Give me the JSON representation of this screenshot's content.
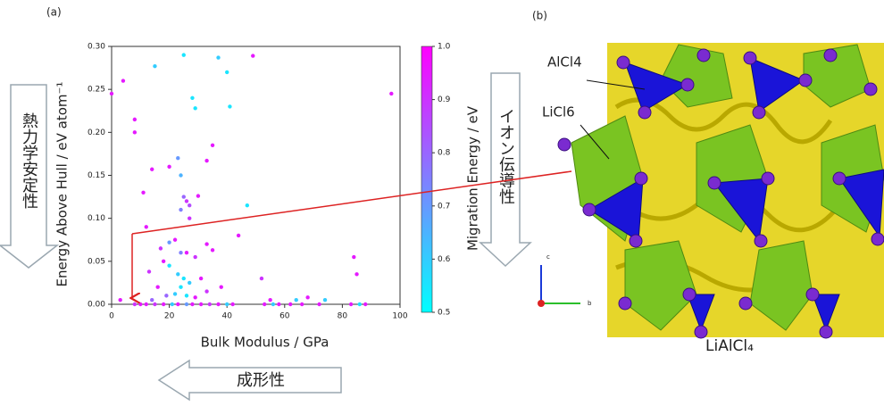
{
  "chart_data": {
    "type": "scatter",
    "panel_label": "(a)",
    "x_label": "Bulk Modulus / GPa",
    "y_label": "Energy Above Hull / eV atom⁻¹",
    "colorbar_label": "Migration Energy / eV",
    "colormap": "cool",
    "xlim": [
      0,
      100
    ],
    "xticks": [
      0,
      20,
      40,
      60,
      80,
      100
    ],
    "ylim": [
      0,
      0.3
    ],
    "yticks": [
      {
        "value": 0,
        "label": "0.00"
      },
      {
        "value": 0.05,
        "label": "0.05"
      },
      {
        "value": 0.1,
        "label": "0.10"
      },
      {
        "value": 0.15,
        "label": "0.15"
      },
      {
        "value": 0.2,
        "label": "0.20"
      },
      {
        "value": 0.25,
        "label": "0.25"
      },
      {
        "value": 0.3,
        "label": "0.30"
      }
    ],
    "clim": [
      0.5,
      1.0
    ],
    "cticks": [
      0.5,
      0.6,
      0.7,
      0.8,
      0.9,
      {
        "value": 1.0,
        "label": "1.0"
      }
    ],
    "x": [
      0,
      4,
      15,
      25,
      37,
      40,
      49,
      97,
      8,
      8,
      28,
      29,
      41,
      35,
      33,
      14,
      20,
      23,
      11,
      24,
      25,
      26,
      27,
      24,
      27,
      30,
      12,
      47,
      20,
      22,
      17,
      24,
      26,
      44,
      33,
      35,
      29,
      18,
      20,
      13,
      23,
      25,
      27,
      24,
      31,
      16,
      33,
      38,
      52,
      84,
      85,
      19,
      22,
      26,
      29,
      3,
      14,
      55,
      64,
      68,
      74,
      8,
      10,
      12,
      15,
      18,
      21,
      23,
      26,
      28,
      31,
      34,
      37,
      40,
      42,
      53,
      56,
      58,
      62,
      66,
      72,
      83,
      86,
      88
    ],
    "y": [
      0.245,
      0.26,
      0.277,
      0.29,
      0.287,
      0.27,
      0.289,
      0.245,
      0.215,
      0.2,
      0.24,
      0.228,
      0.23,
      0.185,
      0.167,
      0.157,
      0.16,
      0.17,
      0.13,
      0.15,
      0.125,
      0.12,
      0.115,
      0.11,
      0.1,
      0.126,
      0.09,
      0.115,
      0.072,
      0.075,
      0.065,
      0.06,
      0.06,
      0.08,
      0.07,
      0.063,
      0.055,
      0.05,
      0.045,
      0.038,
      0.035,
      0.03,
      0.025,
      0.02,
      0.03,
      0.02,
      0.015,
      0.02,
      0.03,
      0.055,
      0.035,
      0.01,
      0.012,
      0.01,
      0.008,
      0.005,
      0.005,
      0.005,
      0.005,
      0.008,
      0.005,
      0,
      0,
      0,
      0,
      0,
      0,
      0,
      0,
      0,
      0,
      0,
      0,
      0,
      0,
      0,
      0,
      0,
      0,
      0,
      0,
      0,
      0,
      0
    ],
    "c": [
      0.95,
      0.95,
      0.6,
      0.55,
      0.6,
      0.55,
      0.95,
      0.95,
      0.95,
      0.95,
      0.55,
      0.55,
      0.55,
      0.95,
      0.95,
      0.95,
      0.95,
      0.7,
      0.95,
      0.65,
      0.8,
      0.9,
      0.85,
      0.75,
      0.9,
      0.95,
      0.95,
      0.55,
      0.7,
      0.95,
      0.9,
      0.75,
      0.95,
      0.95,
      0.95,
      0.95,
      0.9,
      0.95,
      0.55,
      0.9,
      0.6,
      0.55,
      0.6,
      0.55,
      0.95,
      0.95,
      0.9,
      0.95,
      0.9,
      0.95,
      0.95,
      0.8,
      0.6,
      0.55,
      0.95,
      0.95,
      0.8,
      0.95,
      0.6,
      0.95,
      0.6,
      0.9,
      0.95,
      0.95,
      0.9,
      0.95,
      0.6,
      0.95,
      0.7,
      0.95,
      0.95,
      0.9,
      0.95,
      0.6,
      0.95,
      0.95,
      0.6,
      0.95,
      0.95,
      0.95,
      0.95,
      0.95,
      0.55,
      0.95
    ]
  },
  "annotations": {
    "stability": "熱力学安定性",
    "formability": "成形性",
    "conductivity": "イオン伝導性"
  },
  "structure": {
    "panel_label": "(b)",
    "tetrahedron_label": "AlCl4",
    "octahedron_label": "LiCl6",
    "formula": "LiAlCl₄",
    "axis_c": "c",
    "axis_b": "b"
  }
}
